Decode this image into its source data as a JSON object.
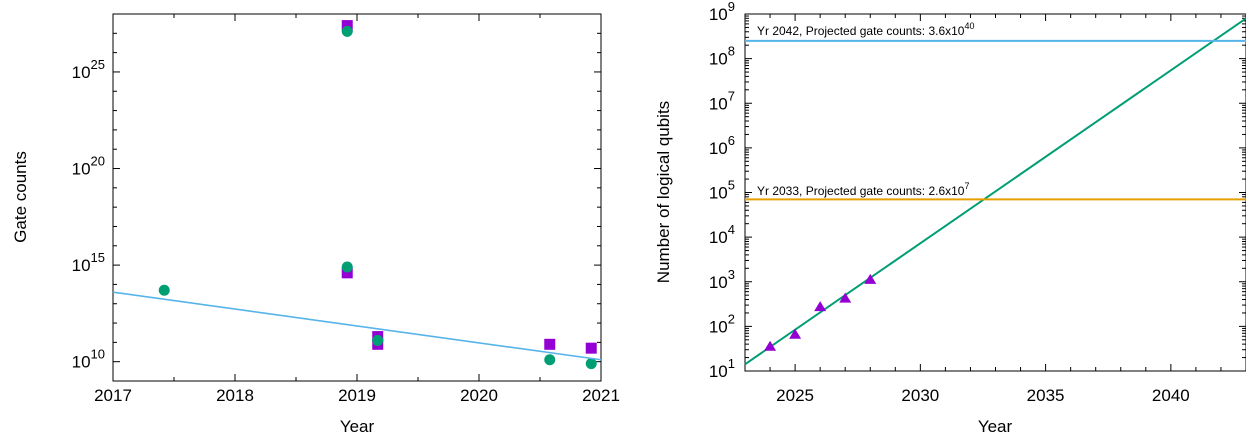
{
  "chart_data": [
    {
      "type": "scatter",
      "xlabel": "Year",
      "ylabel": "Gate counts",
      "xlim": [
        2017,
        2021
      ],
      "ylim_log10": [
        9.0,
        28.0
      ],
      "log_y": true,
      "grid": false,
      "x_ticks": [
        "2017",
        "2018",
        "2019",
        "2020",
        "2021"
      ],
      "y_ticks": [
        {
          "base": "10",
          "exp": "10"
        },
        {
          "base": "10",
          "exp": "15"
        },
        {
          "base": "10",
          "exp": "20"
        },
        {
          "base": "10",
          "exp": "25"
        }
      ],
      "series": [
        {
          "marker": "square",
          "color": "#9400d3",
          "points": [
            {
              "x": 2018.92,
              "y": "1e27.4"
            },
            {
              "x": 2018.92,
              "y": "1e14.6"
            },
            {
              "x": 2019.17,
              "y": "1e11.3"
            },
            {
              "x": 2019.17,
              "y": "1e10.9"
            },
            {
              "x": 2020.58,
              "y": "1e10.9"
            },
            {
              "x": 2020.92,
              "y": "1e10.7"
            }
          ]
        },
        {
          "marker": "circle",
          "color": "#009e73",
          "points": [
            {
              "x": 2017.42,
              "y": "1e13.7"
            },
            {
              "x": 2018.92,
              "y": "1e27.1"
            },
            {
              "x": 2018.92,
              "y": "1e14.9"
            },
            {
              "x": 2019.17,
              "y": "1e11.1"
            },
            {
              "x": 2020.58,
              "y": "1e10.1"
            },
            {
              "x": 2020.92,
              "y": "1e9.9"
            }
          ]
        },
        {
          "type": "line",
          "color": "#56b4e9",
          "x": [
            2017,
            2021
          ],
          "y_log10": [
            13.6,
            10.1
          ]
        }
      ]
    },
    {
      "type": "scatter",
      "xlabel": "Year",
      "ylabel": "Number of logical qubits",
      "xlim": [
        2023,
        2043
      ],
      "ylim_log10": [
        1,
        9
      ],
      "log_y": true,
      "grid": false,
      "x_ticks": [
        "2025",
        "2030",
        "2035",
        "2040"
      ],
      "y_ticks": [
        {
          "base": "10",
          "exp": "1"
        },
        {
          "base": "10",
          "exp": "2"
        },
        {
          "base": "10",
          "exp": "3"
        },
        {
          "base": "10",
          "exp": "4"
        },
        {
          "base": "10",
          "exp": "5"
        },
        {
          "base": "10",
          "exp": "6"
        },
        {
          "base": "10",
          "exp": "7"
        },
        {
          "base": "10",
          "exp": "8"
        },
        {
          "base": "10",
          "exp": "9"
        }
      ],
      "series": [
        {
          "marker": "triangle",
          "color": "#9400d3",
          "x": [
            2024,
            2025,
            2026,
            2027,
            2028
          ],
          "y": [
            35,
            65,
            270,
            420,
            1100
          ]
        },
        {
          "type": "line",
          "color": "#009e73",
          "x": [
            2023,
            2043
          ],
          "y_log10": [
            1.15,
            8.9
          ]
        },
        {
          "type": "hline",
          "color": "#e69f00",
          "y": 70000
        },
        {
          "type": "hline",
          "color": "#56b4e9",
          "y": 250000000
        }
      ],
      "annotations": [
        {
          "text": "Yr 2033, Projected gate counts: 2.6x10",
          "sup": "7"
        },
        {
          "text": "Yr 2042, Projected gate counts: 3.6x10",
          "sup": "40"
        }
      ]
    }
  ]
}
